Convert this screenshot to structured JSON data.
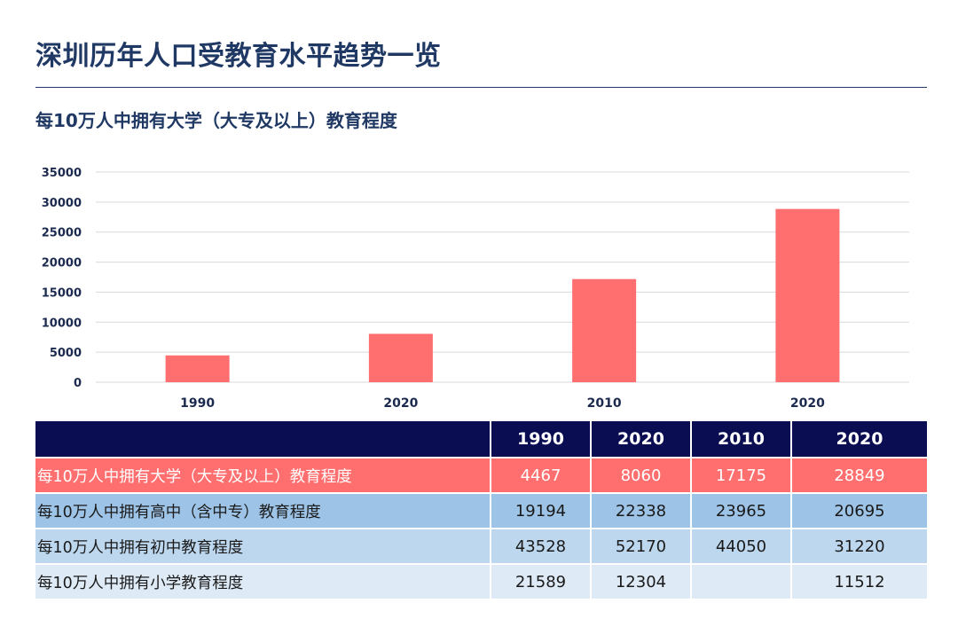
{
  "page": {
    "title": "深圳历年人口受教育水平趋势一览"
  },
  "chart_data": {
    "type": "bar",
    "title": "每10万人中拥有大学（大专及以上）教育程度",
    "categories": [
      "1990",
      "2020",
      "2010",
      "2020"
    ],
    "values": [
      4467,
      8060,
      17175,
      28849
    ],
    "xlabel": "",
    "ylabel": "",
    "ylim": [
      0,
      35000
    ],
    "yticks": [
      0,
      5000,
      10000,
      15000,
      20000,
      25000,
      30000,
      35000
    ],
    "grid": true,
    "legend": "none",
    "colors": {
      "bar": "#ff6f6f",
      "grid": "#d9d9d9",
      "tick_text": "#1b2a4e"
    }
  },
  "table": {
    "header": [
      "",
      "1990",
      "2020",
      "2010",
      "2020"
    ],
    "rows": [
      {
        "label": "每10万人中拥有大学（大专及以上）教育程度",
        "values": [
          "4467",
          "8060",
          "17175",
          "28849"
        ]
      },
      {
        "label": "每10万人中拥有高中（含中专）教育程度",
        "values": [
          "19194",
          "22338",
          "23965",
          "20695"
        ]
      },
      {
        "label": "每10万人中拥有初中教育程度",
        "values": [
          "43528",
          "52170",
          "44050",
          "31220"
        ]
      },
      {
        "label": "每10万人中拥有小学教育程度",
        "values": [
          "21589",
          "12304",
          "",
          "11512"
        ]
      }
    ],
    "colors": {
      "header_bg": "#0b0d52",
      "row_bgs": [
        "#ff6f6f",
        "#9dc3e6",
        "#bdd7ee",
        "#deebf7"
      ]
    }
  }
}
